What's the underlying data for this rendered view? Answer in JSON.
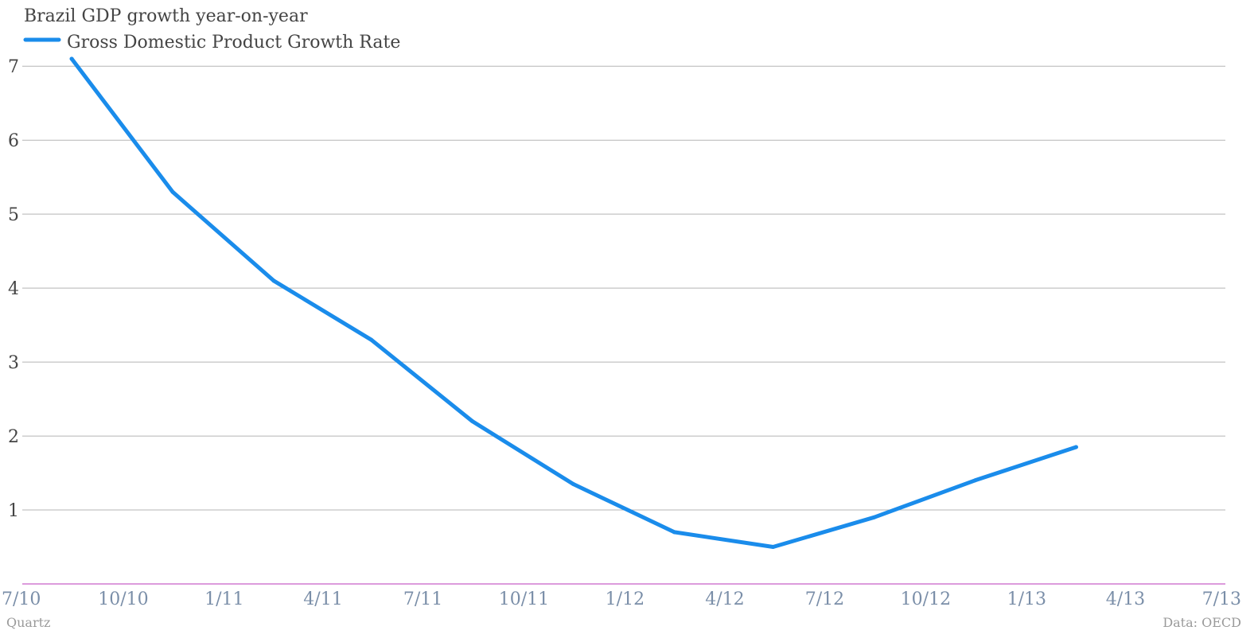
{
  "colors": {
    "series": "#1a8ceb",
    "grid": "#b5b5b5",
    "baseline": "#d07ad0",
    "text": "#444444",
    "xtick": "#7a8ea8",
    "credit": "#9a9a9a"
  },
  "credit_left": "Quartz",
  "credit_right": "Data: OECD",
  "chart_data": {
    "type": "line",
    "title": "Brazil GDP growth year-on-year",
    "xlabel": "",
    "ylabel": "",
    "legend_position": "top-left",
    "grid": true,
    "x_axis": {
      "type": "date",
      "range": [
        "2010-07",
        "2013-07"
      ],
      "ticks": [
        "2010-07",
        "2010-10",
        "2011-01",
        "2011-04",
        "2011-07",
        "2011-10",
        "2012-01",
        "2012-04",
        "2012-07",
        "2012-10",
        "2013-01",
        "2013-04",
        "2013-07"
      ],
      "tick_labels": [
        "7/10",
        "10/10",
        "1/11",
        "4/11",
        "7/11",
        "10/11",
        "1/12",
        "4/12",
        "7/12",
        "10/12",
        "1/13",
        "4/13",
        "7/13"
      ]
    },
    "y_axis": {
      "range": [
        0,
        7.25
      ],
      "ticks": [
        1,
        2,
        3,
        4,
        5,
        6,
        7
      ],
      "tick_labels": [
        "1",
        "2",
        "3",
        "4",
        "5",
        "6",
        "7"
      ]
    },
    "series": [
      {
        "name": "Gross Domestic Product Growth Rate",
        "x": [
          "2010-08-15",
          "2010-11-15",
          "2011-02-15",
          "2011-05-15",
          "2011-08-15",
          "2011-11-15",
          "2012-02-15",
          "2012-05-15",
          "2012-08-15",
          "2012-11-15",
          "2013-02-15"
        ],
        "values": [
          7.1,
          5.3,
          4.1,
          3.3,
          2.2,
          1.35,
          0.7,
          0.5,
          0.9,
          1.4,
          1.85
        ]
      }
    ]
  }
}
